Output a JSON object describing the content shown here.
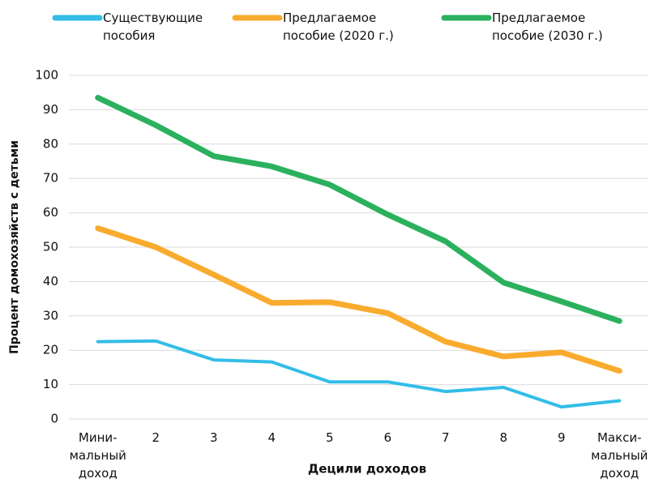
{
  "chart_data": {
    "type": "line",
    "x_label": "Децили доходов",
    "y_label": "Процент домохозяйств с детьми",
    "categories": [
      "Мини-\nмальный\nдоход",
      "2",
      "3",
      "4",
      "5",
      "6",
      "7",
      "8",
      "9",
      "Макси-\nмальный\nдоход"
    ],
    "series": [
      {
        "name": "Существующие\nпособия",
        "color": "#33bde8",
        "values": [
          22.5,
          22.7,
          17.2,
          16.6,
          10.8,
          10.8,
          8.0,
          9.2,
          3.5,
          5.3
        ]
      },
      {
        "name": "Предлагаемое\nпособие (2020 г.)",
        "color": "#f9ab2e",
        "values": [
          55.5,
          50,
          42,
          33.8,
          34,
          30.8,
          22.5,
          18.2,
          19.4,
          14
        ]
      },
      {
        "name": "Предлагаемое\nпособие (2030 г.)",
        "color": "#2bb15e",
        "values": [
          93.5,
          85.5,
          76.5,
          73.5,
          68.2,
          59.5,
          51.7,
          39.7,
          34.2,
          28.5
        ]
      }
    ],
    "ylim": [
      0,
      100
    ],
    "yticks": [
      0,
      10,
      20,
      30,
      40,
      50,
      60,
      70,
      80,
      90,
      100
    ],
    "grid": true,
    "legend": "top"
  }
}
